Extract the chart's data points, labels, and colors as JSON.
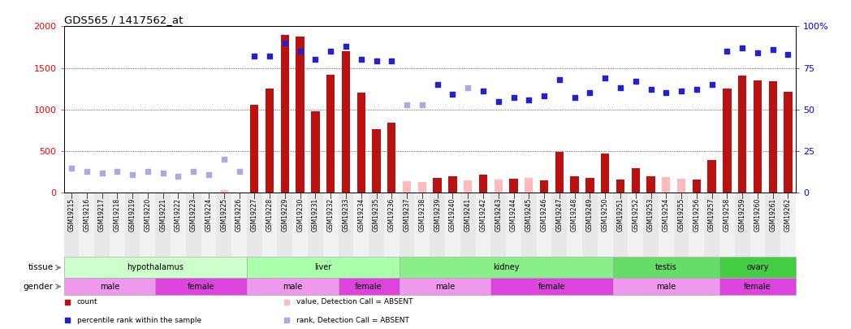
{
  "title": "GDS565 / 1417562_at",
  "samples": [
    "GSM19215",
    "GSM19216",
    "GSM19217",
    "GSM19218",
    "GSM19219",
    "GSM19220",
    "GSM19221",
    "GSM19222",
    "GSM19223",
    "GSM19224",
    "GSM19225",
    "GSM19226",
    "GSM19227",
    "GSM19228",
    "GSM19229",
    "GSM19230",
    "GSM19231",
    "GSM19232",
    "GSM19233",
    "GSM19234",
    "GSM19235",
    "GSM19236",
    "GSM19237",
    "GSM19238",
    "GSM19239",
    "GSM19240",
    "GSM19241",
    "GSM19242",
    "GSM19243",
    "GSM19244",
    "GSM19245",
    "GSM19246",
    "GSM19247",
    "GSM19248",
    "GSM19249",
    "GSM19250",
    "GSM19251",
    "GSM19252",
    "GSM19253",
    "GSM19254",
    "GSM19255",
    "GSM19256",
    "GSM19257",
    "GSM19258",
    "GSM19259",
    "GSM19260",
    "GSM19261",
    "GSM19262"
  ],
  "count_values": [
    null,
    null,
    null,
    null,
    null,
    null,
    null,
    null,
    null,
    null,
    30,
    null,
    1060,
    1250,
    1900,
    1880,
    980,
    1420,
    1700,
    1200,
    760,
    840,
    140,
    130,
    180,
    200,
    150,
    220,
    160,
    170,
    180,
    150,
    490,
    200,
    180,
    470,
    160,
    300,
    200,
    190,
    165,
    155,
    390,
    1250,
    1410,
    1350,
    1340,
    1210
  ],
  "count_absent": [
    false,
    false,
    false,
    false,
    false,
    false,
    false,
    false,
    false,
    false,
    true,
    false,
    false,
    false,
    false,
    false,
    false,
    false,
    false,
    false,
    false,
    false,
    true,
    true,
    false,
    false,
    true,
    false,
    true,
    false,
    true,
    false,
    false,
    false,
    false,
    false,
    false,
    false,
    false,
    true,
    true,
    false,
    false,
    false,
    false,
    false,
    false,
    false
  ],
  "rank_values": [
    15,
    13,
    12,
    13,
    11,
    13,
    12,
    10,
    13,
    11,
    20,
    13,
    82,
    82,
    90,
    85,
    80,
    85,
    88,
    80,
    79,
    79,
    53,
    53,
    65,
    59,
    63,
    61,
    55,
    57,
    56,
    58,
    68,
    57,
    60,
    69,
    63,
    67,
    62,
    60,
    61,
    62,
    65,
    85,
    87,
    84,
    86,
    83
  ],
  "rank_absent": [
    true,
    true,
    true,
    true,
    true,
    true,
    true,
    true,
    true,
    true,
    true,
    true,
    false,
    false,
    false,
    false,
    false,
    false,
    false,
    false,
    false,
    false,
    true,
    true,
    false,
    false,
    true,
    false,
    false,
    false,
    false,
    false,
    false,
    false,
    false,
    false,
    false,
    false,
    false,
    false,
    false,
    false,
    false,
    false,
    false,
    false,
    false,
    false
  ],
  "tissues": [
    {
      "name": "hypothalamus",
      "start": 0,
      "end": 12,
      "color": "#ccffcc"
    },
    {
      "name": "liver",
      "start": 12,
      "end": 22,
      "color": "#aaffaa"
    },
    {
      "name": "kidney",
      "start": 22,
      "end": 36,
      "color": "#88ee88"
    },
    {
      "name": "testis",
      "start": 36,
      "end": 43,
      "color": "#66dd66"
    },
    {
      "name": "ovary",
      "start": 43,
      "end": 48,
      "color": "#44cc44"
    }
  ],
  "genders": [
    {
      "name": "male",
      "start": 0,
      "end": 6
    },
    {
      "name": "female",
      "start": 6,
      "end": 12
    },
    {
      "name": "male",
      "start": 12,
      "end": 18
    },
    {
      "name": "female",
      "start": 18,
      "end": 22
    },
    {
      "name": "male",
      "start": 22,
      "end": 28
    },
    {
      "name": "female",
      "start": 28,
      "end": 36
    },
    {
      "name": "male",
      "start": 36,
      "end": 43
    },
    {
      "name": "female",
      "start": 43,
      "end": 48
    }
  ],
  "gender_colors": {
    "male": "#ee99ee",
    "female": "#dd44dd"
  },
  "left_ylim": [
    0,
    2000
  ],
  "right_ylim": [
    0,
    100
  ],
  "left_yticks": [
    0,
    500,
    1000,
    1500,
    2000
  ],
  "right_yticks": [
    0,
    25,
    50,
    75,
    100
  ],
  "right_yticklabels": [
    "0",
    "25",
    "50",
    "75",
    "100%"
  ],
  "bar_color_present": "#bb1111",
  "bar_color_absent": "#ffbbbb",
  "dot_color_present": "#2222cc",
  "dot_color_absent": "#aaaadd"
}
